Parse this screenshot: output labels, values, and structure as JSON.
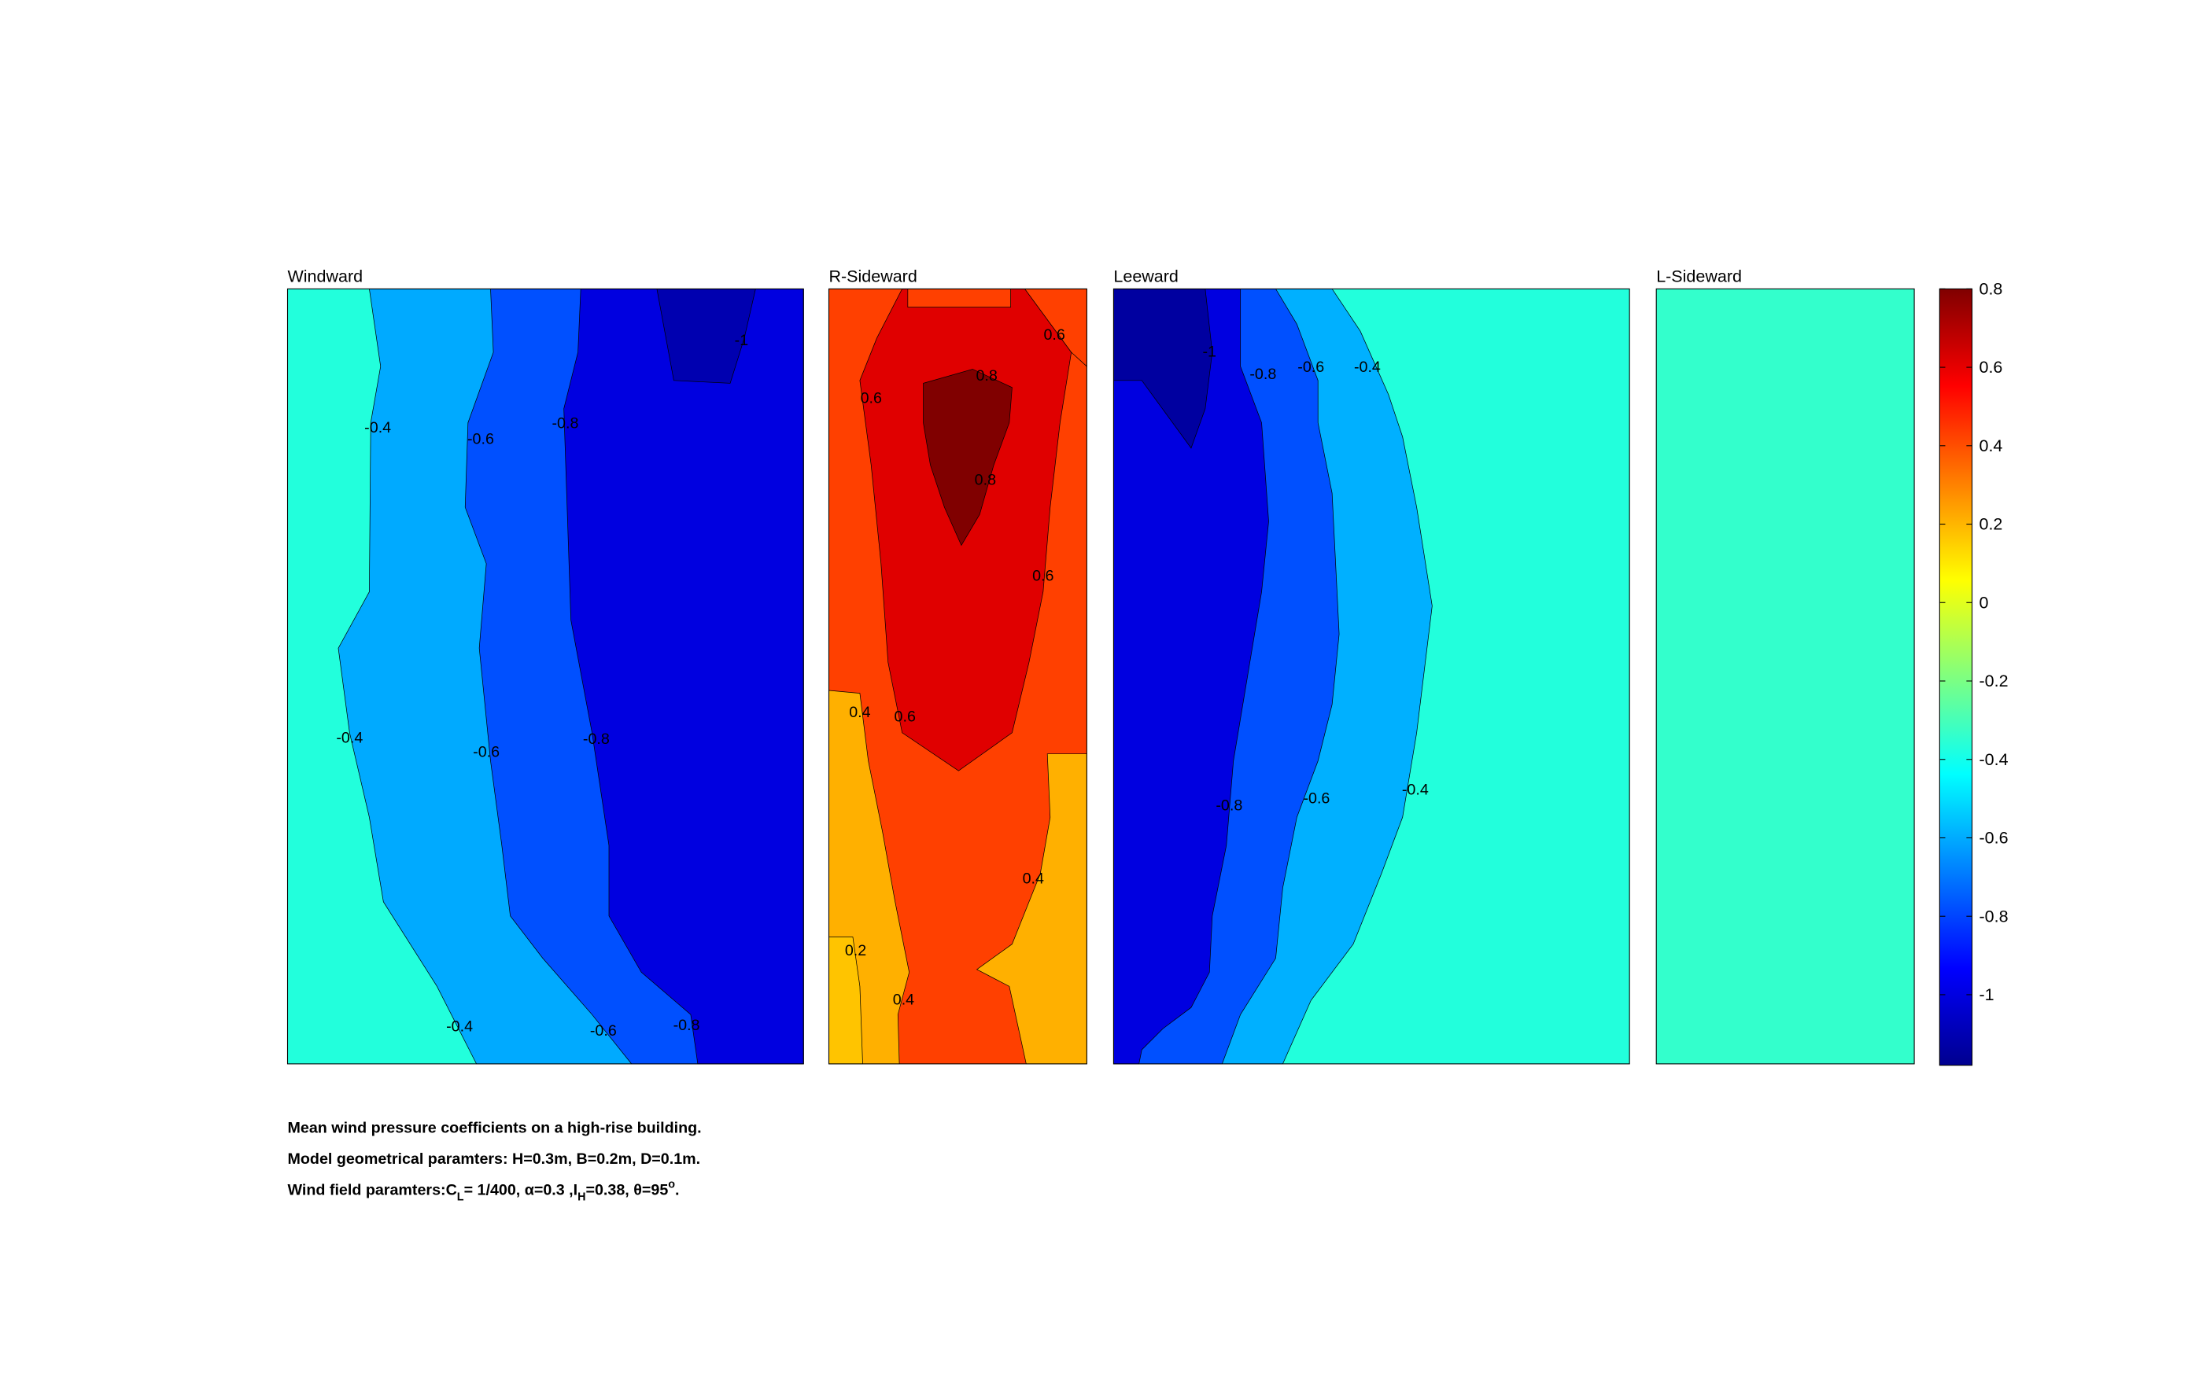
{
  "chart_data": {
    "type": "contour",
    "panels": [
      {
        "title": "Windward",
        "contour_labels": [
          -0.4,
          -0.4,
          -0.4,
          -0.6,
          -0.6,
          -0.6,
          -0.8,
          -0.8,
          -0.8,
          -1
        ]
      },
      {
        "title": "R-Sideward",
        "contour_labels": [
          0.6,
          0.6,
          0.6,
          0.6,
          0.8,
          0.8,
          0.4,
          0.4,
          0.4,
          0.2
        ]
      },
      {
        "title": "Leeward",
        "contour_labels": [
          -1,
          -0.8,
          -0.8,
          -0.6,
          -0.6,
          -0.4,
          -0.4
        ]
      },
      {
        "title": "L-Sideward"
      }
    ],
    "colorbar": {
      "ylim": [
        -1.18,
        0.8
      ],
      "yticks": [
        0.8,
        0.6,
        0.4,
        0.2,
        0,
        -0.2,
        -0.4,
        -0.6,
        -0.8,
        -1
      ]
    },
    "caption": {
      "line1": "Mean wind pressure coefficients on a high-rise building.",
      "line2": "Model geometrical paramters: H=0.3m, B=0.2m, D=0.1m.",
      "line3": [
        "Wind field paramters:C",
        "L",
        "= 1/400, α=0.3 ,I",
        "H",
        "=0.38, θ=95",
        "o",
        "."
      ]
    }
  }
}
